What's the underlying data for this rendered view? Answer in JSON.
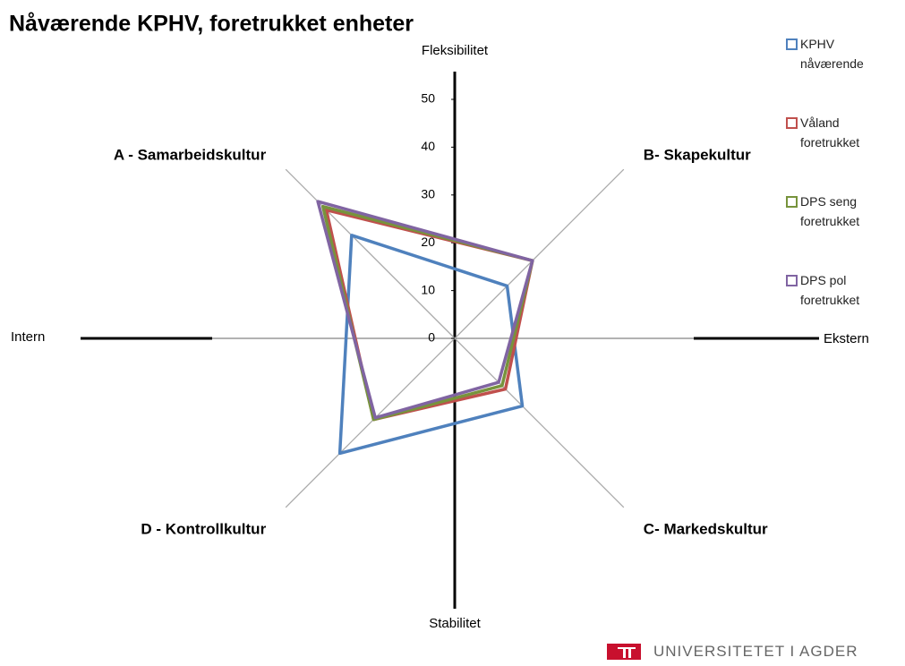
{
  "chart_data": {
    "type": "radar",
    "title": "Nåværende KPHV, foretrukket enheter",
    "categories": [
      "A - Samarbeidskultur",
      "B- Skapekultur",
      "C- Markedskultur",
      "D - Kontrollkultur"
    ],
    "axis_labels": {
      "top": "Fleksibilitet",
      "bottom": "Stabilitet",
      "left": "Intern",
      "right": "Ekstern"
    },
    "series": [
      {
        "name": "KPHV nåværende",
        "color": "#4f81bd",
        "values": [
          30.5,
          15.5,
          20,
          34
        ]
      },
      {
        "name": "Våland foretrukket",
        "color": "#c0504d",
        "values": [
          38,
          23,
          15,
          24
        ]
      },
      {
        "name": "DPS seng foretrukket",
        "color": "#77933c",
        "values": [
          39,
          23,
          14,
          24
        ]
      },
      {
        "name": "DPS pol foretrukket",
        "color": "#8064a2",
        "values": [
          40.5,
          23,
          13,
          23.5
        ]
      }
    ],
    "ylim": [
      0,
      50
    ],
    "yticks": [
      0,
      10,
      20,
      30,
      40,
      50
    ],
    "legend": "right"
  },
  "footer": "UNIVERSITETET I AGDER"
}
